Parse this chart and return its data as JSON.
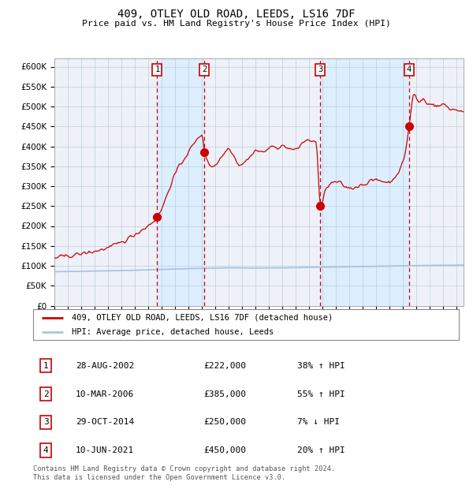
{
  "title": "409, OTLEY OLD ROAD, LEEDS, LS16 7DF",
  "subtitle": "Price paid vs. HM Land Registry's House Price Index (HPI)",
  "ylim": [
    0,
    620000
  ],
  "yticks": [
    0,
    50000,
    100000,
    150000,
    200000,
    250000,
    300000,
    350000,
    400000,
    450000,
    500000,
    550000,
    600000
  ],
  "xlim_start": 1995.0,
  "xlim_end": 2025.5,
  "sale_dates": [
    2002.66,
    2006.19,
    2014.83,
    2021.44
  ],
  "sale_prices": [
    222000,
    385000,
    250000,
    450000
  ],
  "sale_labels": [
    "1",
    "2",
    "3",
    "4"
  ],
  "hpi_line_color": "#aac4e0",
  "price_line_color": "#cc0000",
  "sale_marker_color": "#cc0000",
  "dashed_line_color": "#cc0000",
  "shade_color": "#ddeeff",
  "grid_color": "#bbccdd",
  "legend_entries": [
    "409, OTLEY OLD ROAD, LEEDS, LS16 7DF (detached house)",
    "HPI: Average price, detached house, Leeds"
  ],
  "table_data": [
    [
      "1",
      "28-AUG-2002",
      "£222,000",
      "38% ↑ HPI"
    ],
    [
      "2",
      "10-MAR-2006",
      "£385,000",
      "55% ↑ HPI"
    ],
    [
      "3",
      "29-OCT-2014",
      "£250,000",
      "7% ↓ HPI"
    ],
    [
      "4",
      "10-JUN-2021",
      "£450,000",
      "20% ↑ HPI"
    ]
  ],
  "footnote": "Contains HM Land Registry data © Crown copyright and database right 2024.\nThis data is licensed under the Open Government Licence v3.0.",
  "background_color": "#eef2f8"
}
